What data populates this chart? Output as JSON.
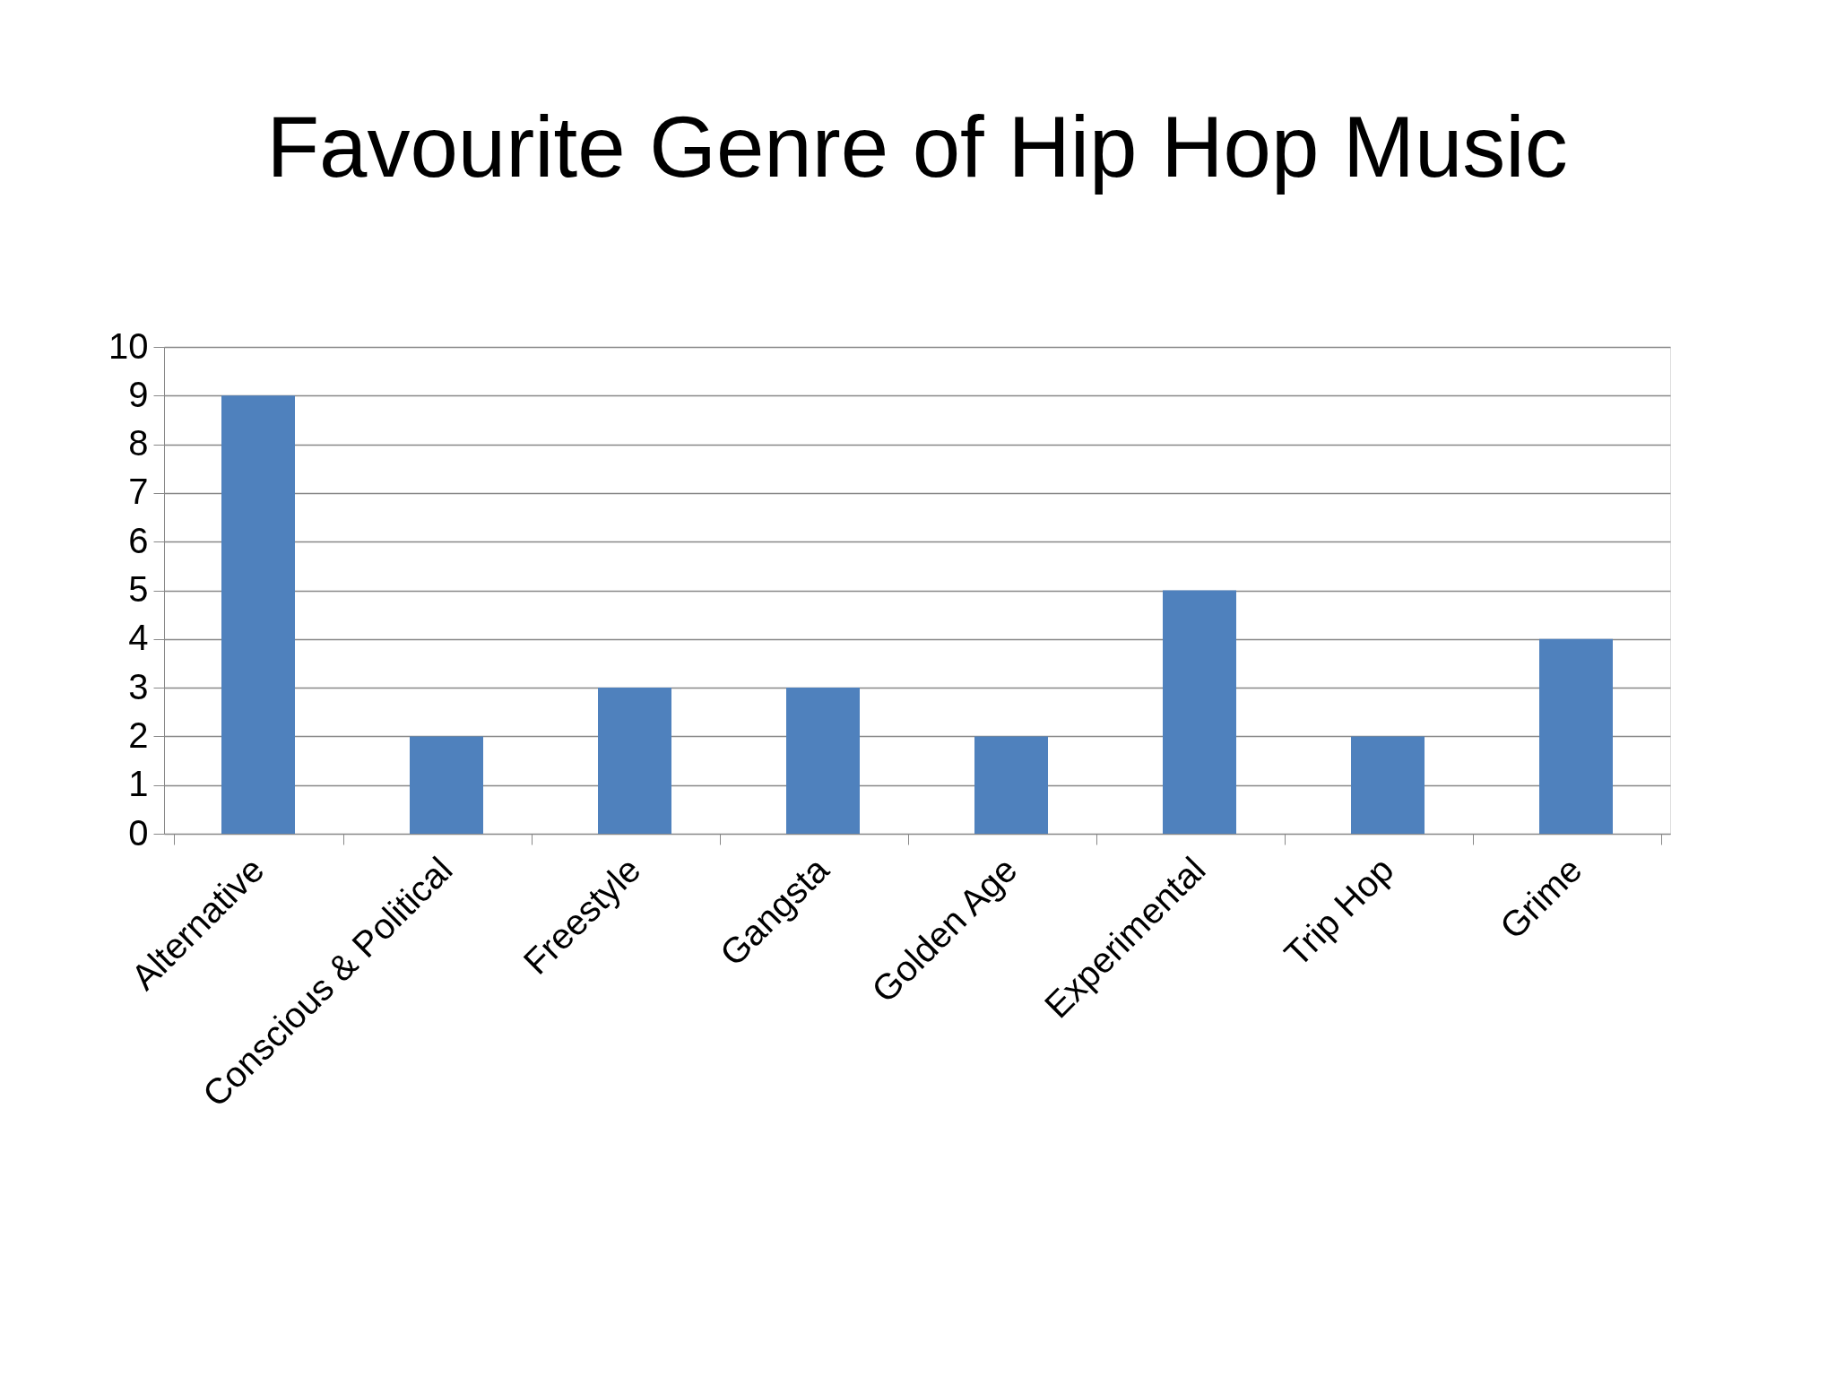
{
  "chart_data": {
    "type": "bar",
    "title": "Favourite Genre of Hip Hop Music",
    "categories": [
      "Alternative",
      "Conscious & Political",
      "Freestyle",
      "Gangsta",
      "Golden Age",
      "Experimental",
      "Trip Hop",
      "Grime"
    ],
    "values": [
      9,
      2,
      3,
      3,
      2,
      5,
      2,
      4
    ],
    "color": "#4f81bd",
    "ylim": [
      0,
      10
    ],
    "yticks": [
      0,
      1,
      2,
      3,
      4,
      5,
      6,
      7,
      8,
      9,
      10
    ],
    "grid": "y"
  }
}
